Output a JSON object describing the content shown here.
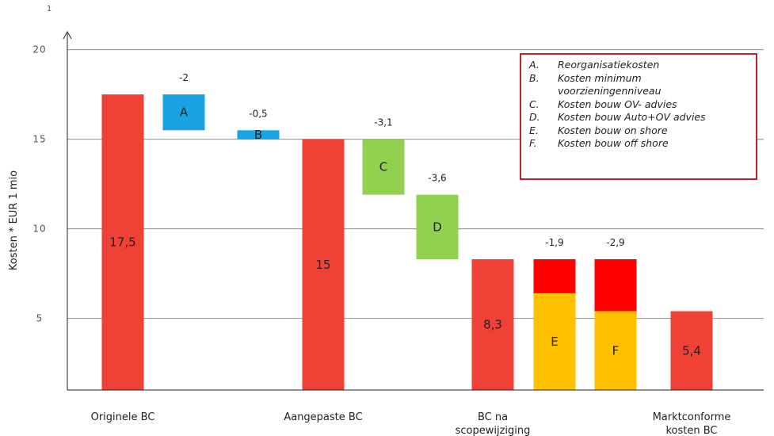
{
  "page_marker": "1",
  "chart_data": {
    "type": "waterfall",
    "ylabel": "Kosten * EUR 1 mio",
    "ylim": [
      1,
      21
    ],
    "yticks": [
      5,
      10,
      15,
      20
    ],
    "grid": true,
    "categories": [
      "Originele BC",
      "Aangepaste BC",
      "BC na scopewijziging",
      "Marktconforme kosten BC"
    ],
    "category_lines": [
      [
        "Originele BC"
      ],
      [
        "Aangepaste BC"
      ],
      [
        "BC na",
        "scopewijziging"
      ],
      [
        "Marktconforme",
        "kosten BC"
      ]
    ],
    "bars": [
      {
        "kind": "total",
        "value": 17.5,
        "label": "17,5",
        "category": 0,
        "color": "#ef4136"
      },
      {
        "kind": "delta",
        "letter": "A",
        "from": 17.5,
        "to": 15.5,
        "label": "-2",
        "color": "#1aa3e3"
      },
      {
        "kind": "delta",
        "letter": "B",
        "from": 15.5,
        "to": 15.0,
        "label": "-0,5",
        "color": "#1aa3e3"
      },
      {
        "kind": "total",
        "value": 15,
        "label": "15",
        "category": 1,
        "color": "#ef4136"
      },
      {
        "kind": "delta",
        "letter": "C",
        "from": 15.0,
        "to": 11.9,
        "label": "-3,1",
        "color": "#92d050"
      },
      {
        "kind": "delta",
        "letter": "D",
        "from": 11.9,
        "to": 8.3,
        "label": "-3,6",
        "color": "#92d050"
      },
      {
        "kind": "total",
        "value": 8.3,
        "label": "8,3",
        "category": 2,
        "color": "#ef4136"
      },
      {
        "kind": "delta",
        "letter": "E",
        "from": 8.3,
        "to": 6.4,
        "label": "-1,9",
        "color": "#ff0000",
        "remain_color": "#ffc000"
      },
      {
        "kind": "delta",
        "letter": "F",
        "from": 8.3,
        "to": 5.4,
        "label": "-2,9",
        "color": "#ff0000",
        "remain_color": "#ffc000"
      },
      {
        "kind": "total",
        "value": 5.4,
        "label": "5,4",
        "category": 3,
        "color": "#ef4136"
      }
    ],
    "legend": [
      {
        "key": "A.",
        "text": "Reorganisatiekosten"
      },
      {
        "key": "B.",
        "text": "Kosten minimum voorzieningenniveau"
      },
      {
        "key": "C.",
        "text": "Kosten bouw OV- advies"
      },
      {
        "key": "D.",
        "text": "Kosten bouw Auto+OV advies"
      },
      {
        "key": "E.",
        "text": "Kosten bouw on shore"
      },
      {
        "key": "F.",
        "text": "Kosten bouw off shore"
      }
    ],
    "legend_placement": "top-right"
  }
}
